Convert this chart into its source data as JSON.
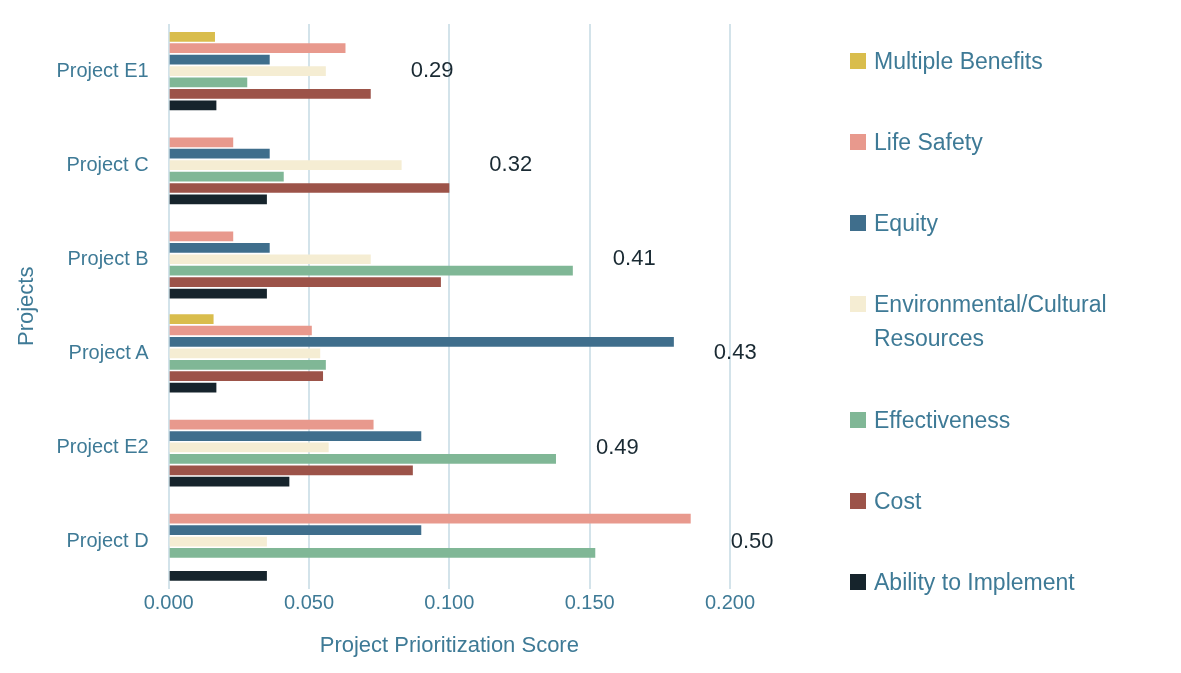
{
  "chart_data": {
    "type": "bar",
    "orientation": "horizontal",
    "xlabel": "Project Prioritization Score",
    "ylabel": "Projects",
    "categories": [
      "Project E1",
      "Project C",
      "Project B",
      "Project A",
      "Project E2",
      "Project D"
    ],
    "series": [
      {
        "name": "Multiple Benefits",
        "color": "#d9bd4c",
        "values": [
          0.0165,
          null,
          null,
          0.016,
          null,
          null
        ]
      },
      {
        "name": "Life Safety",
        "color": "#e8998d",
        "values": [
          0.063,
          0.023,
          0.023,
          0.051,
          0.073,
          0.186
        ]
      },
      {
        "name": "Equity",
        "color": "#3f6e8c",
        "values": [
          0.036,
          0.036,
          0.036,
          0.18,
          0.09,
          0.09
        ]
      },
      {
        "name": "Environmental/Cultural Resources",
        "color": "#f5edd3",
        "values": [
          0.056,
          0.083,
          0.072,
          0.054,
          0.057,
          0.035
        ]
      },
      {
        "name": "Effectiveness",
        "color": "#80b796",
        "values": [
          0.028,
          0.041,
          0.144,
          0.056,
          0.138,
          0.152
        ]
      },
      {
        "name": "Cost",
        "color": "#9c5349",
        "values": [
          0.072,
          0.1,
          0.097,
          0.055,
          0.087,
          null
        ]
      },
      {
        "name": "Ability to Implement",
        "color": "#16242c",
        "values": [
          0.017,
          0.035,
          0.035,
          0.017,
          0.043,
          0.035
        ]
      }
    ],
    "totals": [
      "0.29",
      "0.32",
      "0.41",
      "0.43",
      "0.49",
      "0.50"
    ],
    "xlim": [
      0,
      0.2
    ],
    "xticks": [
      {
        "value": 0,
        "label": "0.000"
      },
      {
        "value": 0.05,
        "label": "0.050"
      },
      {
        "value": 0.1,
        "label": "0.100"
      },
      {
        "value": 0.15,
        "label": "0.150"
      },
      {
        "value": 0.2,
        "label": "0.200"
      }
    ],
    "grid": "x",
    "legend": "right"
  }
}
